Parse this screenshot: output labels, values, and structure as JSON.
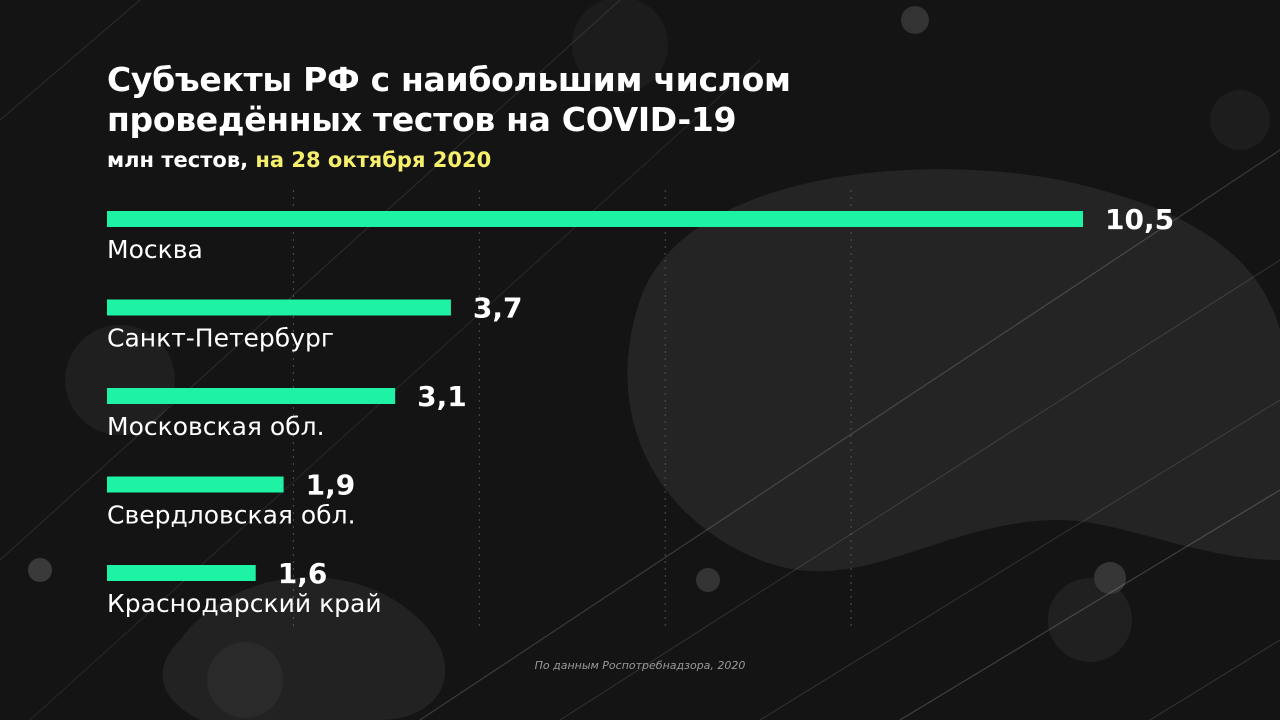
{
  "title_lines": [
    "Субъекты РФ с наибольшим числом",
    "проведённых тестов на COVID-19"
  ],
  "subtitle_unit": "млн тестов,",
  "subtitle_date": "на 28 октября 2020",
  "footnote": "По данным Роспотребнадзора, 2020",
  "colors": {
    "bar": "#1ef2a4",
    "date_highlight": "#f5ef6b",
    "text": "#ffffff",
    "background": "#141414"
  },
  "chart_data": {
    "type": "bar",
    "orientation": "horizontal",
    "categories": [
      "Москва",
      "Санкт-Петербург",
      "Московская обл.",
      "Свердловская обл.",
      "Краснодарский край"
    ],
    "values": [
      10.5,
      3.7,
      3.1,
      1.9,
      1.6
    ],
    "value_labels": [
      "10,5",
      "3,7",
      "3,1",
      "1,9",
      "1,6"
    ],
    "xlim": [
      0,
      10.5
    ],
    "grid": true
  }
}
